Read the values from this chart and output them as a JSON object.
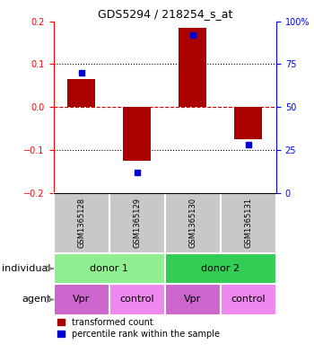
{
  "title": "GDS5294 / 218254_s_at",
  "samples": [
    "GSM1365128",
    "GSM1365129",
    "GSM1365130",
    "GSM1365131"
  ],
  "transformed_counts": [
    0.065,
    -0.125,
    0.185,
    -0.075
  ],
  "percentile_ranks": [
    70,
    12,
    92,
    28
  ],
  "ylim_left": [
    -0.2,
    0.2
  ],
  "ylim_right": [
    0,
    100
  ],
  "yticks_left": [
    -0.2,
    -0.1,
    0,
    0.1,
    0.2
  ],
  "yticks_right": [
    0,
    25,
    50,
    75,
    100
  ],
  "bar_color": "#AA0000",
  "dot_color": "#0000CC",
  "hline_zero_color": "#CC0000",
  "hline_color": "#000000",
  "individual_labels": [
    "donor 1",
    "donor 2"
  ],
  "individual_color_light": "#90EE90",
  "individual_color_dark": "#33CC55",
  "agent_labels": [
    "Vpr",
    "control",
    "Vpr",
    "control"
  ],
  "agent_colors": [
    "#CC66CC",
    "#EE88EE",
    "#CC66CC",
    "#EE88EE"
  ],
  "sample_box_color": "#C8C8C8",
  "legend_red_label": "transformed count",
  "legend_blue_label": "percentile rank within the sample",
  "bar_width": 0.5
}
